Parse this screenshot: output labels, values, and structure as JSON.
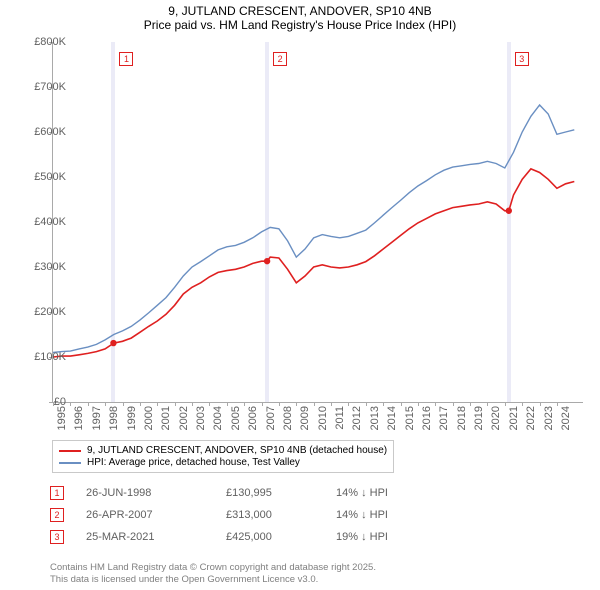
{
  "title_line_1": "9, JUTLAND CRESCENT, ANDOVER, SP10 4NB",
  "title_line_2": "Price paid vs. HM Land Registry's House Price Index (HPI)",
  "chart": {
    "type": "line",
    "background_color": "#ffffff",
    "axis_color": "#a9a9a9",
    "tick_color": "#a9a9a9",
    "tick_label_color": "#606060",
    "tick_fontsize": 11,
    "ylim": [
      0,
      800000
    ],
    "ytick_step": 100000,
    "ytick_labels": [
      "£0",
      "£100K",
      "£200K",
      "£300K",
      "£400K",
      "£500K",
      "£600K",
      "£700K",
      "£800K"
    ],
    "xlim": [
      1995,
      2025.5
    ],
    "xtick_step": 1,
    "xtick_years": [
      1995,
      1996,
      1997,
      1998,
      1999,
      2000,
      2001,
      2002,
      2003,
      2004,
      2005,
      2006,
      2007,
      2008,
      2009,
      2010,
      2011,
      2012,
      2013,
      2014,
      2015,
      2016,
      2017,
      2018,
      2019,
      2020,
      2021,
      2022,
      2023,
      2024
    ],
    "series": [
      {
        "name": "property",
        "label": "9, JUTLAND CRESCENT, ANDOVER, SP10 4NB (detached house)",
        "color": "#df2020",
        "width": 1.6,
        "points": [
          [
            1995,
            100000
          ],
          [
            1995.5,
            102000
          ],
          [
            1996,
            102000
          ],
          [
            1996.5,
            105000
          ],
          [
            1997,
            108000
          ],
          [
            1997.5,
            112000
          ],
          [
            1998,
            118000
          ],
          [
            1998.5,
            130995
          ],
          [
            1999,
            135000
          ],
          [
            1999.5,
            142000
          ],
          [
            2000,
            155000
          ],
          [
            2000.5,
            168000
          ],
          [
            2001,
            180000
          ],
          [
            2001.5,
            195000
          ],
          [
            2002,
            215000
          ],
          [
            2002.5,
            240000
          ],
          [
            2003,
            255000
          ],
          [
            2003.5,
            265000
          ],
          [
            2004,
            278000
          ],
          [
            2004.5,
            288000
          ],
          [
            2005,
            292000
          ],
          [
            2005.5,
            295000
          ],
          [
            2006,
            300000
          ],
          [
            2006.5,
            308000
          ],
          [
            2007,
            313000
          ],
          [
            2007.32,
            313000
          ],
          [
            2007.5,
            322000
          ],
          [
            2008,
            320000
          ],
          [
            2008.5,
            295000
          ],
          [
            2009,
            265000
          ],
          [
            2009.5,
            280000
          ],
          [
            2010,
            300000
          ],
          [
            2010.5,
            305000
          ],
          [
            2011,
            300000
          ],
          [
            2011.5,
            298000
          ],
          [
            2012,
            300000
          ],
          [
            2012.5,
            305000
          ],
          [
            2013,
            312000
          ],
          [
            2013.5,
            325000
          ],
          [
            2014,
            340000
          ],
          [
            2014.5,
            355000
          ],
          [
            2015,
            370000
          ],
          [
            2015.5,
            385000
          ],
          [
            2016,
            398000
          ],
          [
            2016.5,
            408000
          ],
          [
            2017,
            418000
          ],
          [
            2017.5,
            425000
          ],
          [
            2018,
            432000
          ],
          [
            2018.5,
            435000
          ],
          [
            2019,
            438000
          ],
          [
            2019.5,
            440000
          ],
          [
            2020,
            445000
          ],
          [
            2020.5,
            440000
          ],
          [
            2021,
            425000
          ],
          [
            2021.23,
            425000
          ],
          [
            2021.5,
            460000
          ],
          [
            2022,
            495000
          ],
          [
            2022.5,
            518000
          ],
          [
            2023,
            510000
          ],
          [
            2023.5,
            495000
          ],
          [
            2024,
            475000
          ],
          [
            2024.5,
            485000
          ],
          [
            2025,
            490000
          ]
        ]
      },
      {
        "name": "hpi",
        "label": "HPI: Average price, detached house, Test Valley",
        "color": "#6a8fc2",
        "width": 1.4,
        "points": [
          [
            1995,
            110000
          ],
          [
            1995.5,
            112000
          ],
          [
            1996,
            113000
          ],
          [
            1996.5,
            118000
          ],
          [
            1997,
            122000
          ],
          [
            1997.5,
            128000
          ],
          [
            1998,
            138000
          ],
          [
            1998.5,
            150000
          ],
          [
            1999,
            158000
          ],
          [
            1999.5,
            168000
          ],
          [
            2000,
            182000
          ],
          [
            2000.5,
            198000
          ],
          [
            2001,
            215000
          ],
          [
            2001.5,
            232000
          ],
          [
            2002,
            255000
          ],
          [
            2002.5,
            280000
          ],
          [
            2003,
            300000
          ],
          [
            2003.5,
            312000
          ],
          [
            2004,
            325000
          ],
          [
            2004.5,
            338000
          ],
          [
            2005,
            345000
          ],
          [
            2005.5,
            348000
          ],
          [
            2006,
            355000
          ],
          [
            2006.5,
            365000
          ],
          [
            2007,
            378000
          ],
          [
            2007.5,
            388000
          ],
          [
            2008,
            385000
          ],
          [
            2008.5,
            358000
          ],
          [
            2009,
            322000
          ],
          [
            2009.5,
            340000
          ],
          [
            2010,
            365000
          ],
          [
            2010.5,
            372000
          ],
          [
            2011,
            368000
          ],
          [
            2011.5,
            365000
          ],
          [
            2012,
            368000
          ],
          [
            2012.5,
            375000
          ],
          [
            2013,
            382000
          ],
          [
            2013.5,
            398000
          ],
          [
            2014,
            415000
          ],
          [
            2014.5,
            432000
          ],
          [
            2015,
            448000
          ],
          [
            2015.5,
            465000
          ],
          [
            2016,
            480000
          ],
          [
            2016.5,
            492000
          ],
          [
            2017,
            505000
          ],
          [
            2017.5,
            515000
          ],
          [
            2018,
            522000
          ],
          [
            2018.5,
            525000
          ],
          [
            2019,
            528000
          ],
          [
            2019.5,
            530000
          ],
          [
            2020,
            535000
          ],
          [
            2020.5,
            530000
          ],
          [
            2021,
            520000
          ],
          [
            2021.5,
            555000
          ],
          [
            2022,
            600000
          ],
          [
            2022.5,
            635000
          ],
          [
            2023,
            660000
          ],
          [
            2023.5,
            640000
          ],
          [
            2024,
            595000
          ],
          [
            2024.5,
            600000
          ],
          [
            2025,
            605000
          ]
        ]
      }
    ],
    "sale_markers": [
      {
        "n": "1",
        "year": 1998.48,
        "price": 130995,
        "color": "#df2020",
        "band_color": "#e9e9f6"
      },
      {
        "n": "2",
        "year": 2007.32,
        "price": 313000,
        "color": "#df2020",
        "band_color": "#e9e9f6"
      },
      {
        "n": "3",
        "year": 2021.23,
        "price": 425000,
        "color": "#df2020",
        "band_color": "#e9e9f6"
      }
    ]
  },
  "legend": {
    "border_color": "#c9c9c9"
  },
  "sales_table": [
    {
      "n": "1",
      "date": "26-JUN-1998",
      "price": "£130,995",
      "diff": "14% ↓ HPI",
      "color": "#df2020"
    },
    {
      "n": "2",
      "date": "26-APR-2007",
      "price": "£313,000",
      "diff": "14% ↓ HPI",
      "color": "#df2020"
    },
    {
      "n": "3",
      "date": "25-MAR-2021",
      "price": "£425,000",
      "diff": "19% ↓ HPI",
      "color": "#df2020"
    }
  ],
  "footer_line_1": "Contains HM Land Registry data © Crown copyright and database right 2025.",
  "footer_line_2": "This data is licensed under the Open Government Licence v3.0."
}
